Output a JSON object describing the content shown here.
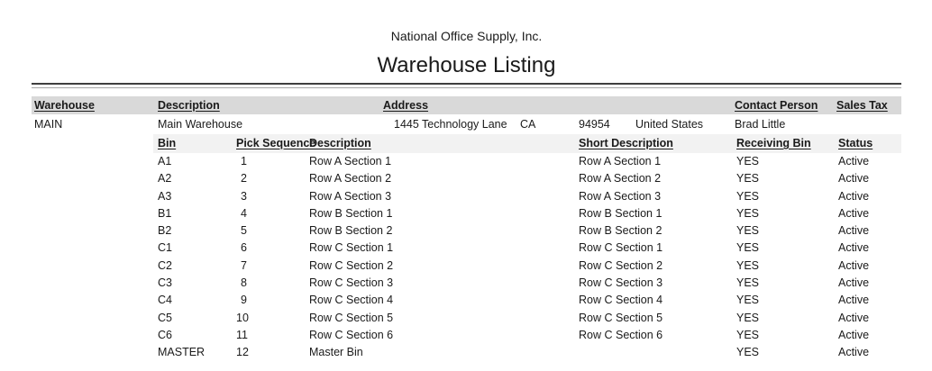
{
  "header": {
    "company": "National Office Supply, Inc.",
    "title": "Warehouse Listing"
  },
  "warehouse_table": {
    "columns": {
      "warehouse": "Warehouse",
      "description": "Description",
      "address": "Address",
      "contact_person": "Contact Person",
      "sales_tax": "Sales Tax"
    },
    "row": {
      "warehouse": "MAIN",
      "description": "Main Warehouse",
      "address_street": "1445 Technology Lane",
      "address_state": "CA",
      "address_zip": "94954",
      "address_country": "United States",
      "contact_person": "Brad Little",
      "sales_tax": ""
    }
  },
  "bin_table": {
    "columns": {
      "bin": "Bin",
      "pick_sequence": "Pick Sequence",
      "description": "Description",
      "short_description": "Short Description",
      "receiving_bin": "Receiving Bin",
      "status": "Status"
    },
    "rows": [
      {
        "bin": "A1",
        "pick_sequence": "1",
        "description": "Row A Section 1",
        "short_description": "Row A Section 1",
        "receiving_bin": "YES",
        "status": "Active"
      },
      {
        "bin": "A2",
        "pick_sequence": "2",
        "description": "Row A Section 2",
        "short_description": "Row A Section 2",
        "receiving_bin": "YES",
        "status": "Active"
      },
      {
        "bin": "A3",
        "pick_sequence": "3",
        "description": "Row A Section 3",
        "short_description": "Row A Section 3",
        "receiving_bin": "YES",
        "status": "Active"
      },
      {
        "bin": "B1",
        "pick_sequence": "4",
        "description": "Row B Section 1",
        "short_description": "Row B Section 1",
        "receiving_bin": "YES",
        "status": "Active"
      },
      {
        "bin": "B2",
        "pick_sequence": "5",
        "description": "Row B Section 2",
        "short_description": "Row B Section 2",
        "receiving_bin": "YES",
        "status": "Active"
      },
      {
        "bin": "C1",
        "pick_sequence": "6",
        "description": "Row C Section 1",
        "short_description": "Row C Section 1",
        "receiving_bin": "YES",
        "status": "Active"
      },
      {
        "bin": "C2",
        "pick_sequence": "7",
        "description": "Row C Section 2",
        "short_description": "Row C Section 2",
        "receiving_bin": "YES",
        "status": "Active"
      },
      {
        "bin": "C3",
        "pick_sequence": "8",
        "description": "Row C Section 3",
        "short_description": "Row C Section 3",
        "receiving_bin": "YES",
        "status": "Active"
      },
      {
        "bin": "C4",
        "pick_sequence": "9",
        "description": "Row C Section 4",
        "short_description": "Row C Section 4",
        "receiving_bin": "YES",
        "status": "Active"
      },
      {
        "bin": "C5",
        "pick_sequence": "10",
        "description": "Row C Section 5",
        "short_description": "Row C Section 5",
        "receiving_bin": "YES",
        "status": "Active"
      },
      {
        "bin": "C6",
        "pick_sequence": "11",
        "description": "Row C Section 6",
        "short_description": "Row C Section 6",
        "receiving_bin": "YES",
        "status": "Active"
      },
      {
        "bin": "MASTER",
        "pick_sequence": "12",
        "description": "Master Bin",
        "short_description": "",
        "receiving_bin": "YES",
        "status": "Active"
      }
    ]
  },
  "colors": {
    "header_band": "#d9d9d9",
    "subheader_band": "#f2f2f2",
    "rule_dark": "#3f3f3f",
    "rule_light": "#a6a6a6",
    "text": "#1a1a1a"
  }
}
